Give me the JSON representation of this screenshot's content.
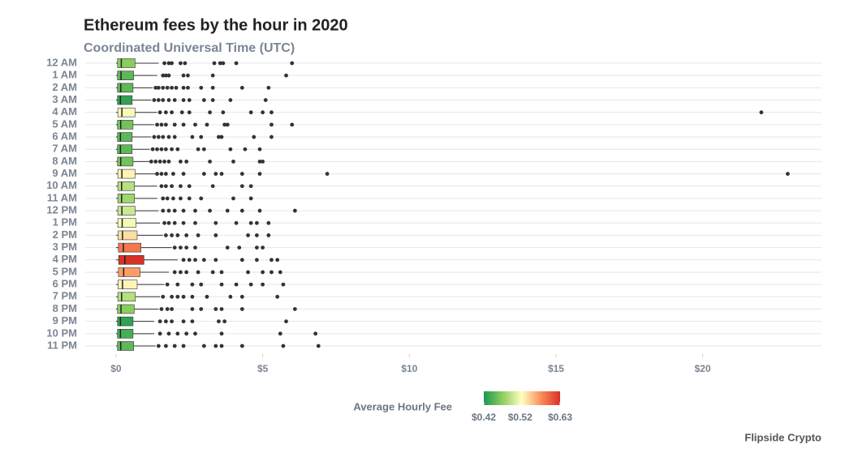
{
  "chart_data": {
    "type": "boxplot",
    "title": "Ethereum fees by the hour in 2020",
    "subtitle": "Coordinated Universal Time (UTC)",
    "caption": "Flipside Crypto",
    "categories": [
      "12 AM",
      "1 AM",
      "2 AM",
      "3 AM",
      "4 AM",
      "5 AM",
      "6 AM",
      "7 AM",
      "8 AM",
      "9 AM",
      "10 AM",
      "11 AM",
      "12 PM",
      "1 PM",
      "2 PM",
      "3 PM",
      "4 PM",
      "5 PM",
      "6 PM",
      "7 PM",
      "8 PM",
      "9 PM",
      "10 PM",
      "11 PM"
    ],
    "min": [
      0,
      0,
      0,
      0,
      0,
      0,
      0,
      0,
      0,
      0,
      0,
      0,
      0,
      0,
      0,
      0,
      0,
      0,
      0,
      0,
      0,
      0,
      0,
      0
    ],
    "q1": [
      0.05,
      0.05,
      0.05,
      0.05,
      0.06,
      0.05,
      0.05,
      0.05,
      0.05,
      0.06,
      0.06,
      0.06,
      0.06,
      0.06,
      0.07,
      0.08,
      0.09,
      0.08,
      0.07,
      0.06,
      0.05,
      0.05,
      0.05,
      0.05
    ],
    "median": [
      0.18,
      0.17,
      0.16,
      0.15,
      0.2,
      0.16,
      0.15,
      0.15,
      0.16,
      0.2,
      0.19,
      0.19,
      0.2,
      0.21,
      0.22,
      0.25,
      0.3,
      0.26,
      0.22,
      0.19,
      0.17,
      0.15,
      0.15,
      0.16
    ],
    "q3": [
      0.65,
      0.6,
      0.58,
      0.55,
      0.65,
      0.58,
      0.55,
      0.55,
      0.58,
      0.65,
      0.63,
      0.63,
      0.65,
      0.68,
      0.72,
      0.85,
      0.95,
      0.82,
      0.72,
      0.66,
      0.62,
      0.58,
      0.58,
      0.6
    ],
    "max": [
      1.45,
      1.4,
      1.25,
      1.2,
      1.4,
      1.3,
      1.2,
      1.15,
      1.25,
      1.4,
      1.4,
      1.4,
      1.45,
      1.5,
      1.6,
      1.9,
      2.1,
      1.8,
      1.65,
      1.5,
      1.45,
      1.3,
      1.3,
      1.35
    ],
    "outliers": [
      [
        1.65,
        1.8,
        1.9,
        2.2,
        2.35,
        3.35,
        3.55,
        3.65,
        4.1,
        6.0
      ],
      [
        1.6,
        1.7,
        1.8,
        2.3,
        2.45,
        3.3,
        5.8
      ],
      [
        1.35,
        1.45,
        1.6,
        1.75,
        1.9,
        2.05,
        2.3,
        2.45,
        2.9,
        3.3,
        4.3,
        5.2
      ],
      [
        1.3,
        1.45,
        1.6,
        1.8,
        2.0,
        2.3,
        2.5,
        3.0,
        3.3,
        3.9,
        5.1
      ],
      [
        1.5,
        1.7,
        1.9,
        2.25,
        2.5,
        3.2,
        3.65,
        4.6,
        5.0,
        5.3,
        22.0
      ],
      [
        1.4,
        1.55,
        1.7,
        2.0,
        2.3,
        2.7,
        3.1,
        3.7,
        3.8,
        5.3,
        6.0
      ],
      [
        1.3,
        1.45,
        1.6,
        1.8,
        2.0,
        2.6,
        2.9,
        3.5,
        3.6,
        4.7,
        5.3
      ],
      [
        1.25,
        1.4,
        1.55,
        1.7,
        1.9,
        2.1,
        2.8,
        3.0,
        3.9,
        4.4,
        4.9
      ],
      [
        1.2,
        1.35,
        1.5,
        1.65,
        1.8,
        2.2,
        2.4,
        3.2,
        4.0,
        4.9,
        5.0
      ],
      [
        1.4,
        1.55,
        1.7,
        1.95,
        2.3,
        3.0,
        3.4,
        3.6,
        4.3,
        4.9,
        7.2,
        22.9
      ],
      [
        1.55,
        1.7,
        1.9,
        2.2,
        2.5,
        3.3,
        4.3,
        4.6
      ],
      [
        1.6,
        1.75,
        1.95,
        2.2,
        2.5,
        2.9,
        4.0,
        4.6
      ],
      [
        1.6,
        1.8,
        2.0,
        2.3,
        2.7,
        3.2,
        3.8,
        4.3,
        4.9,
        6.1
      ],
      [
        1.65,
        1.8,
        2.0,
        2.3,
        2.7,
        3.4,
        4.1,
        4.6,
        4.8,
        5.2
      ],
      [
        1.7,
        1.9,
        2.1,
        2.4,
        2.8,
        3.4,
        4.5,
        4.8,
        5.2
      ],
      [
        2.0,
        2.2,
        2.4,
        2.7,
        3.8,
        4.2,
        4.8,
        5.0
      ],
      [
        2.3,
        2.5,
        2.7,
        3.0,
        3.4,
        4.3,
        4.8,
        5.3,
        5.5
      ],
      [
        2.0,
        2.2,
        2.4,
        2.8,
        3.3,
        3.6,
        4.5,
        5.0,
        5.3,
        5.6
      ],
      [
        1.75,
        2.1,
        2.6,
        2.9,
        3.6,
        4.1,
        4.6,
        5.0,
        5.7
      ],
      [
        1.6,
        1.9,
        2.1,
        2.3,
        2.6,
        3.1,
        3.9,
        4.3,
        5.5
      ],
      [
        1.55,
        1.75,
        1.9,
        2.6,
        2.9,
        3.4,
        3.6,
        4.3,
        6.1
      ],
      [
        1.5,
        1.7,
        1.9,
        2.3,
        2.6,
        3.5,
        3.7,
        5.8
      ],
      [
        1.5,
        1.8,
        2.1,
        2.4,
        2.7,
        3.6,
        5.6,
        6.8
      ],
      [
        1.45,
        1.7,
        2.0,
        2.3,
        3.0,
        3.4,
        3.6,
        4.3,
        5.7,
        6.9
      ]
    ],
    "avg_fee": [
      0.47,
      0.45,
      0.45,
      0.43,
      0.52,
      0.46,
      0.45,
      0.45,
      0.46,
      0.53,
      0.49,
      0.48,
      0.5,
      0.52,
      0.54,
      0.59,
      0.63,
      0.57,
      0.53,
      0.49,
      0.47,
      0.43,
      0.44,
      0.45
    ],
    "xlim": [
      -1.05,
      24.05
    ],
    "xticks": [
      {
        "value": 0,
        "label": "$0"
      },
      {
        "value": 5,
        "label": "$5"
      },
      {
        "value": 10,
        "label": "$10"
      },
      {
        "value": 15,
        "label": "$15"
      },
      {
        "value": 20,
        "label": "$20"
      }
    ],
    "grid": true,
    "colorbar": {
      "title": "Average Hourly Fee",
      "range": [
        0.42,
        0.63
      ],
      "colors": [
        "#1a9850",
        "#91cf60",
        "#ffffbf",
        "#fc8d59",
        "#d73027"
      ],
      "ticks": [
        {
          "value": 0.42,
          "label": "$0.42"
        },
        {
          "value": 0.52,
          "label": "$0.52"
        },
        {
          "value": 0.63,
          "label": "$0.63"
        }
      ]
    }
  }
}
